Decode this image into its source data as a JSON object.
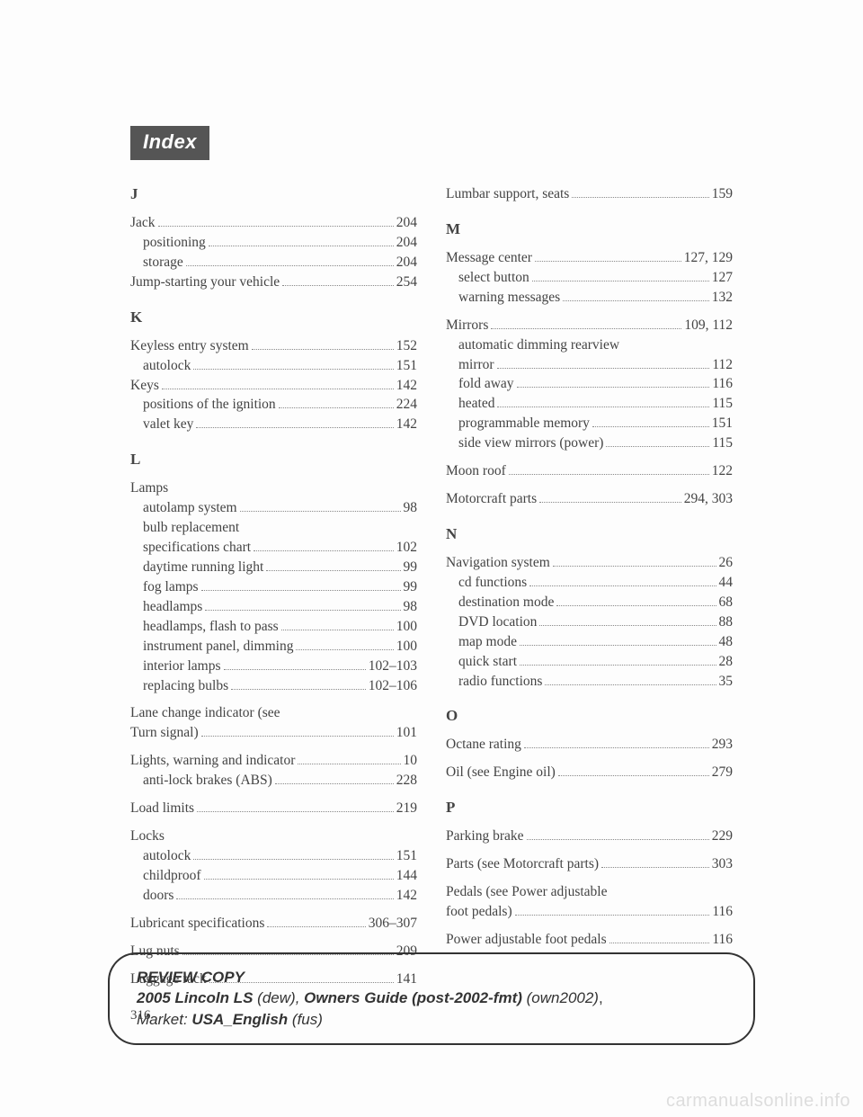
{
  "header": "Index",
  "page_number": "316",
  "left": {
    "sections": [
      {
        "letter": "J",
        "entries": [
          {
            "label": "Jack",
            "page": "204",
            "subs": [
              {
                "label": "positioning",
                "page": "204"
              },
              {
                "label": "storage",
                "page": "204"
              }
            ]
          },
          {
            "label": "Jump-starting your vehicle",
            "page": "254"
          }
        ]
      },
      {
        "letter": "K",
        "entries": [
          {
            "label": "Keyless entry system",
            "page": "152",
            "subs": [
              {
                "label": "autolock",
                "page": "151"
              }
            ]
          },
          {
            "label": "Keys",
            "page": "142",
            "subs": [
              {
                "label": "positions of the ignition",
                "page": "224"
              },
              {
                "label": "valet key",
                "page": "142"
              }
            ]
          }
        ]
      },
      {
        "letter": "L",
        "entries": [
          {
            "label": "Lamps",
            "nopage": true,
            "subs": [
              {
                "label": "autolamp system",
                "page": "98"
              },
              {
                "label": "bulb replacement specifications chart",
                "page": "102",
                "wrap": true
              },
              {
                "label": "daytime running light",
                "page": "99"
              },
              {
                "label": "fog lamps",
                "page": "99"
              },
              {
                "label": "headlamps",
                "page": "98"
              },
              {
                "label": "headlamps, flash to pass",
                "page": "100"
              },
              {
                "label": "instrument panel, dimming",
                "page": "100"
              },
              {
                "label": "interior lamps",
                "page": "102–103"
              },
              {
                "label": "replacing bulbs",
                "page": "102–106"
              }
            ]
          },
          {
            "label": "Lane change indicator (see Turn signal)",
            "page": "101",
            "wrap": true,
            "top_margin": true
          },
          {
            "label": "Lights, warning and indicator",
            "page": "10",
            "top_margin": true,
            "subs": [
              {
                "label": "anti-lock brakes (ABS)",
                "page": "228"
              }
            ]
          },
          {
            "label": "Load limits",
            "page": "219",
            "top_margin": true
          },
          {
            "label": "Locks",
            "nopage": true,
            "top_margin": true,
            "subs": [
              {
                "label": "autolock",
                "page": "151"
              },
              {
                "label": "childproof",
                "page": "144"
              },
              {
                "label": "doors",
                "page": "142"
              }
            ]
          },
          {
            "label": "Lubricant specifications",
            "page": "306–307",
            "top_margin": true
          },
          {
            "label": "Lug nuts",
            "page": "209",
            "top_margin": true
          },
          {
            "label": "Luggage rack",
            "page": "141",
            "top_margin": true
          }
        ]
      }
    ]
  },
  "right": {
    "sections": [
      {
        "entries": [
          {
            "label": "Lumbar support, seats",
            "page": "159"
          }
        ]
      },
      {
        "letter": "M",
        "entries": [
          {
            "label": "Message center",
            "page": "127, 129",
            "subs": [
              {
                "label": "select button",
                "page": "127"
              },
              {
                "label": "warning messages",
                "page": "132"
              }
            ]
          },
          {
            "label": "Mirrors",
            "page": "109, 112",
            "top_margin": true,
            "subs": [
              {
                "label": "automatic dimming rearview mirror",
                "page": "112",
                "wrap": true
              },
              {
                "label": "fold away",
                "page": "116"
              },
              {
                "label": "heated",
                "page": "115"
              },
              {
                "label": "programmable memory",
                "page": "151"
              },
              {
                "label": "side view mirrors (power)",
                "page": "115"
              }
            ]
          },
          {
            "label": "Moon roof",
            "page": "122",
            "top_margin": true
          },
          {
            "label": "Motorcraft parts",
            "page": "294, 303",
            "top_margin": true
          }
        ]
      },
      {
        "letter": "N",
        "entries": [
          {
            "label": "Navigation system",
            "page": "26",
            "subs": [
              {
                "label": "cd functions",
                "page": "44"
              },
              {
                "label": "destination mode",
                "page": "68"
              },
              {
                "label": "DVD location",
                "page": "88"
              },
              {
                "label": "map mode",
                "page": "48"
              },
              {
                "label": "quick start",
                "page": "28"
              },
              {
                "label": "radio functions",
                "page": "35"
              }
            ]
          }
        ]
      },
      {
        "letter": "O",
        "entries": [
          {
            "label": "Octane rating",
            "page": "293"
          },
          {
            "label": "Oil (see Engine oil)",
            "page": "279",
            "top_margin": true
          }
        ]
      },
      {
        "letter": "P",
        "entries": [
          {
            "label": "Parking brake",
            "page": "229"
          },
          {
            "label": "Parts (see Motorcraft parts)",
            "page": "303",
            "top_margin": true
          },
          {
            "label": "Pedals (see Power adjustable foot pedals)",
            "page": "116",
            "wrap": true,
            "top_margin": true
          },
          {
            "label": "Power adjustable foot pedals",
            "page": "116",
            "top_margin": true
          }
        ]
      }
    ]
  },
  "footer": {
    "line1_bold": "REVIEW COPY",
    "line2_bold": "2005 Lincoln LS",
    "line2_i1": "(dew)",
    "line2_sep": ", ",
    "line2_bold2": "Owners Guide (post-2002-fmt)",
    "line2_i2": "(own2002)",
    "line3_i": "Market:",
    "line3_bold": "USA_English",
    "line3_i2": "(fus)"
  },
  "watermark": "carmanualsonline.info"
}
